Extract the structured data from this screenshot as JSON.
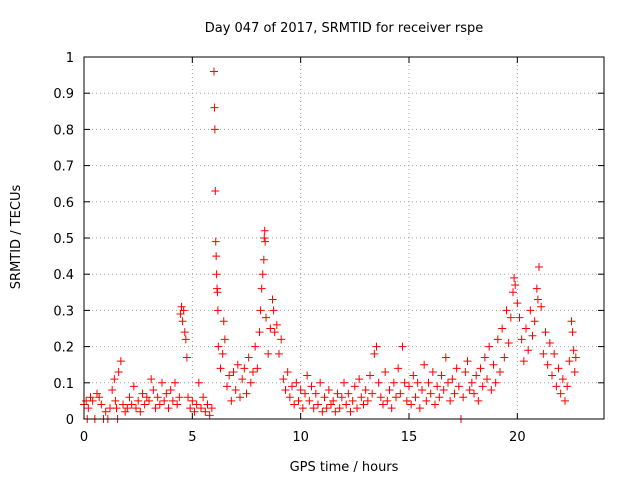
{
  "chart_data": {
    "type": "scatter",
    "title": "Day 047 of 2017, SRMTID for receiver rspe",
    "xlabel": "GPS time / hours",
    "ylabel": "SRMTID / TECUs",
    "xlim": [
      0,
      24
    ],
    "ylim": [
      0,
      1
    ],
    "xticks": [
      0,
      5,
      10,
      15,
      20
    ],
    "yticks": [
      0,
      0.1,
      0.2,
      0.3,
      0.4,
      0.5,
      0.6,
      0.7,
      0.8,
      0.9,
      1
    ],
    "grid": true,
    "marker": "plus",
    "color": "#ff0000",
    "series": [
      {
        "name": "SRMTID",
        "points": [
          [
            0.0,
            0.04
          ],
          [
            0.1,
            0.05
          ],
          [
            0.15,
            0.0
          ],
          [
            0.2,
            0.03
          ],
          [
            0.3,
            0.06
          ],
          [
            0.4,
            0.05
          ],
          [
            0.5,
            0.0
          ],
          [
            0.6,
            0.07
          ],
          [
            0.7,
            0.06
          ],
          [
            0.8,
            0.04
          ],
          [
            0.9,
            0.0
          ],
          [
            1.0,
            0.02
          ],
          [
            1.1,
            0.0
          ],
          [
            1.2,
            0.03
          ],
          [
            1.3,
            0.08
          ],
          [
            1.4,
            0.11
          ],
          [
            1.45,
            0.05
          ],
          [
            1.5,
            0.03
          ],
          [
            1.55,
            0.0
          ],
          [
            1.6,
            0.13
          ],
          [
            1.7,
            0.16
          ],
          [
            1.8,
            0.04
          ],
          [
            1.9,
            0.02
          ],
          [
            2.0,
            0.03
          ],
          [
            2.1,
            0.06
          ],
          [
            2.2,
            0.04
          ],
          [
            2.3,
            0.09
          ],
          [
            2.4,
            0.03
          ],
          [
            2.5,
            0.05
          ],
          [
            2.6,
            0.02
          ],
          [
            2.7,
            0.07
          ],
          [
            2.8,
            0.04
          ],
          [
            2.9,
            0.06
          ],
          [
            3.0,
            0.05
          ],
          [
            3.1,
            0.11
          ],
          [
            3.2,
            0.08
          ],
          [
            3.3,
            0.03
          ],
          [
            3.4,
            0.06
          ],
          [
            3.5,
            0.04
          ],
          [
            3.6,
            0.1
          ],
          [
            3.7,
            0.05
          ],
          [
            3.8,
            0.07
          ],
          [
            3.9,
            0.03
          ],
          [
            4.0,
            0.08
          ],
          [
            4.1,
            0.05
          ],
          [
            4.2,
            0.1
          ],
          [
            4.3,
            0.04
          ],
          [
            4.4,
            0.06
          ],
          [
            4.45,
            0.29
          ],
          [
            4.5,
            0.31
          ],
          [
            4.55,
            0.27
          ],
          [
            4.6,
            0.3
          ],
          [
            4.65,
            0.24
          ],
          [
            4.7,
            0.22
          ],
          [
            4.75,
            0.17
          ],
          [
            4.8,
            0.06
          ],
          [
            4.9,
            0.03
          ],
          [
            5.0,
            0.05
          ],
          [
            5.1,
            0.02
          ],
          [
            5.2,
            0.04
          ],
          [
            5.3,
            0.1
          ],
          [
            5.4,
            0.03
          ],
          [
            5.5,
            0.06
          ],
          [
            5.6,
            0.02
          ],
          [
            5.7,
            0.04
          ],
          [
            5.8,
            0.01
          ],
          [
            5.9,
            0.03
          ],
          [
            6.0,
            0.96
          ],
          [
            6.02,
            0.86
          ],
          [
            6.04,
            0.8
          ],
          [
            6.06,
            0.63
          ],
          [
            6.08,
            0.49
          ],
          [
            6.1,
            0.45
          ],
          [
            6.12,
            0.4
          ],
          [
            6.14,
            0.36
          ],
          [
            6.16,
            0.35
          ],
          [
            6.18,
            0.3
          ],
          [
            6.2,
            0.2
          ],
          [
            6.3,
            0.14
          ],
          [
            6.4,
            0.18
          ],
          [
            6.45,
            0.27
          ],
          [
            6.5,
            0.22
          ],
          [
            6.6,
            0.09
          ],
          [
            6.7,
            0.12
          ],
          [
            6.8,
            0.05
          ],
          [
            6.9,
            0.13
          ],
          [
            7.0,
            0.08
          ],
          [
            7.1,
            0.15
          ],
          [
            7.2,
            0.06
          ],
          [
            7.3,
            0.11
          ],
          [
            7.4,
            0.14
          ],
          [
            7.5,
            0.07
          ],
          [
            7.6,
            0.17
          ],
          [
            7.7,
            0.1
          ],
          [
            7.8,
            0.13
          ],
          [
            7.9,
            0.2
          ],
          [
            8.0,
            0.14
          ],
          [
            8.1,
            0.24
          ],
          [
            8.15,
            0.3
          ],
          [
            8.2,
            0.36
          ],
          [
            8.25,
            0.4
          ],
          [
            8.3,
            0.44
          ],
          [
            8.32,
            0.5
          ],
          [
            8.34,
            0.52
          ],
          [
            8.36,
            0.49
          ],
          [
            8.4,
            0.28
          ],
          [
            8.5,
            0.18
          ],
          [
            8.6,
            0.25
          ],
          [
            8.7,
            0.33
          ],
          [
            8.75,
            0.3
          ],
          [
            8.8,
            0.24
          ],
          [
            8.9,
            0.26
          ],
          [
            9.0,
            0.18
          ],
          [
            9.1,
            0.22
          ],
          [
            9.2,
            0.11
          ],
          [
            9.3,
            0.08
          ],
          [
            9.4,
            0.13
          ],
          [
            9.5,
            0.06
          ],
          [
            9.6,
            0.09
          ],
          [
            9.7,
            0.04
          ],
          [
            9.8,
            0.1
          ],
          [
            9.9,
            0.05
          ],
          [
            10.0,
            0.08
          ],
          [
            10.1,
            0.03
          ],
          [
            10.2,
            0.07
          ],
          [
            10.3,
            0.12
          ],
          [
            10.4,
            0.05
          ],
          [
            10.5,
            0.09
          ],
          [
            10.6,
            0.03
          ],
          [
            10.7,
            0.07
          ],
          [
            10.8,
            0.04
          ],
          [
            10.9,
            0.1
          ],
          [
            11.0,
            0.02
          ],
          [
            11.1,
            0.06
          ],
          [
            11.2,
            0.03
          ],
          [
            11.3,
            0.08
          ],
          [
            11.4,
            0.04
          ],
          [
            11.5,
            0.05
          ],
          [
            11.6,
            0.02
          ],
          [
            11.7,
            0.07
          ],
          [
            11.8,
            0.03
          ],
          [
            11.9,
            0.06
          ],
          [
            12.0,
            0.1
          ],
          [
            12.1,
            0.04
          ],
          [
            12.2,
            0.07
          ],
          [
            12.3,
            0.02
          ],
          [
            12.4,
            0.05
          ],
          [
            12.5,
            0.09
          ],
          [
            12.6,
            0.03
          ],
          [
            12.7,
            0.11
          ],
          [
            12.8,
            0.06
          ],
          [
            12.9,
            0.04
          ],
          [
            13.0,
            0.08
          ],
          [
            13.1,
            0.05
          ],
          [
            13.2,
            0.12
          ],
          [
            13.3,
            0.07
          ],
          [
            13.4,
            0.18
          ],
          [
            13.5,
            0.2
          ],
          [
            13.6,
            0.1
          ],
          [
            13.7,
            0.06
          ],
          [
            13.8,
            0.04
          ],
          [
            13.9,
            0.13
          ],
          [
            14.0,
            0.05
          ],
          [
            14.1,
            0.08
          ],
          [
            14.2,
            0.03
          ],
          [
            14.3,
            0.1
          ],
          [
            14.4,
            0.06
          ],
          [
            14.5,
            0.14
          ],
          [
            14.6,
            0.07
          ],
          [
            14.7,
            0.2
          ],
          [
            14.8,
            0.1
          ],
          [
            14.9,
            0.05
          ],
          [
            15.0,
            0.09
          ],
          [
            15.1,
            0.04
          ],
          [
            15.2,
            0.12
          ],
          [
            15.3,
            0.06
          ],
          [
            15.4,
            0.1
          ],
          [
            15.5,
            0.03
          ],
          [
            15.6,
            0.08
          ],
          [
            15.7,
            0.15
          ],
          [
            15.8,
            0.05
          ],
          [
            15.9,
            0.1
          ],
          [
            16.0,
            0.07
          ],
          [
            16.1,
            0.13
          ],
          [
            16.2,
            0.04
          ],
          [
            16.3,
            0.09
          ],
          [
            16.4,
            0.06
          ],
          [
            16.5,
            0.12
          ],
          [
            16.6,
            0.08
          ],
          [
            16.7,
            0.17
          ],
          [
            16.8,
            0.1
          ],
          [
            16.9,
            0.05
          ],
          [
            17.0,
            0.11
          ],
          [
            17.1,
            0.07
          ],
          [
            17.2,
            0.14
          ],
          [
            17.3,
            0.09
          ],
          [
            17.4,
            0.0
          ],
          [
            17.5,
            0.06
          ],
          [
            17.6,
            0.13
          ],
          [
            17.7,
            0.16
          ],
          [
            17.8,
            0.08
          ],
          [
            17.9,
            0.1
          ],
          [
            18.0,
            0.07
          ],
          [
            18.1,
            0.12
          ],
          [
            18.2,
            0.05
          ],
          [
            18.3,
            0.14
          ],
          [
            18.4,
            0.09
          ],
          [
            18.5,
            0.17
          ],
          [
            18.6,
            0.11
          ],
          [
            18.7,
            0.2
          ],
          [
            18.8,
            0.08
          ],
          [
            18.9,
            0.15
          ],
          [
            19.0,
            0.1
          ],
          [
            19.1,
            0.22
          ],
          [
            19.2,
            0.13
          ],
          [
            19.3,
            0.25
          ],
          [
            19.4,
            0.17
          ],
          [
            19.5,
            0.3
          ],
          [
            19.6,
            0.21
          ],
          [
            19.7,
            0.28
          ],
          [
            19.8,
            0.35
          ],
          [
            19.85,
            0.39
          ],
          [
            19.9,
            0.37
          ],
          [
            20.0,
            0.32
          ],
          [
            20.1,
            0.28
          ],
          [
            20.2,
            0.22
          ],
          [
            20.3,
            0.16
          ],
          [
            20.4,
            0.25
          ],
          [
            20.5,
            0.19
          ],
          [
            20.6,
            0.3
          ],
          [
            20.7,
            0.23
          ],
          [
            20.8,
            0.27
          ],
          [
            20.9,
            0.36
          ],
          [
            20.95,
            0.33
          ],
          [
            21.0,
            0.42
          ],
          [
            21.1,
            0.31
          ],
          [
            21.2,
            0.18
          ],
          [
            21.3,
            0.24
          ],
          [
            21.4,
            0.15
          ],
          [
            21.5,
            0.21
          ],
          [
            21.6,
            0.12
          ],
          [
            21.7,
            0.18
          ],
          [
            21.8,
            0.09
          ],
          [
            21.9,
            0.14
          ],
          [
            22.0,
            0.07
          ],
          [
            22.1,
            0.11
          ],
          [
            22.2,
            0.05
          ],
          [
            22.3,
            0.09
          ],
          [
            22.4,
            0.16
          ],
          [
            22.5,
            0.27
          ],
          [
            22.55,
            0.24
          ],
          [
            22.6,
            0.19
          ],
          [
            22.65,
            0.13
          ],
          [
            22.7,
            0.17
          ]
        ]
      }
    ]
  }
}
